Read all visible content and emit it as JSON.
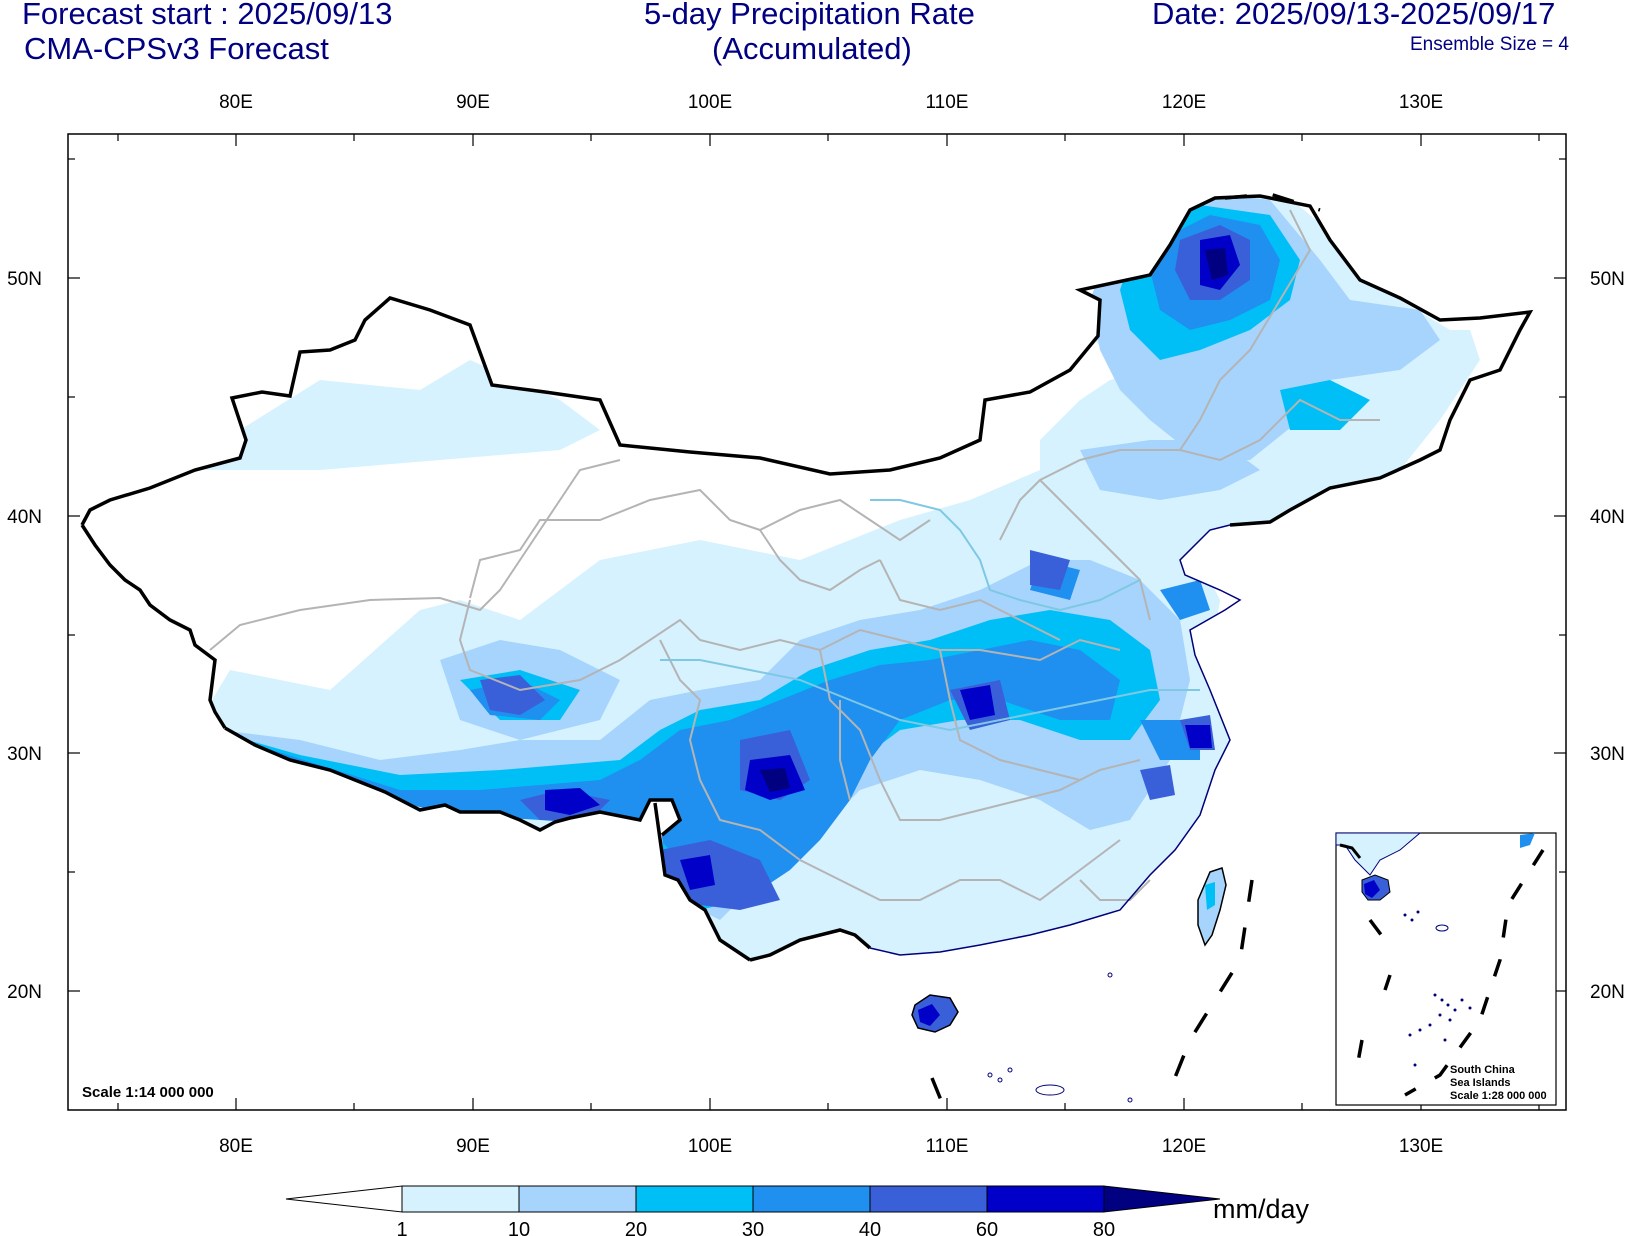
{
  "header": {
    "forecast_start": "Forecast start : 2025/09/13",
    "model": "CMA-CPSv3 Forecast",
    "title_line1": "5-day Precipitation Rate",
    "title_line2": "(Accumulated)",
    "date_range": "Date: 2025/09/13-2025/09/17",
    "ensemble": "Ensemble Size = 4"
  },
  "axes": {
    "lon_labels": [
      "80E",
      "90E",
      "100E",
      "110E",
      "120E",
      "130E"
    ],
    "lat_labels": [
      "50N",
      "40N",
      "30N",
      "20N"
    ]
  },
  "map": {
    "scale_text": "Scale 1:14 000 000",
    "inset_title_1": "South China",
    "inset_title_2": "Sea Islands",
    "inset_scale": "Scale 1:28 000 000"
  },
  "colorbar": {
    "unit": "mm/day",
    "labels": [
      "1",
      "10",
      "20",
      "30",
      "40",
      "60",
      "80"
    ],
    "colors": [
      "#ffffff",
      "#d6f2fe",
      "#a6d4fd",
      "#00bff6",
      "#1f8ff0",
      "#3a60d9",
      "#0000c8",
      "#000080"
    ]
  }
}
